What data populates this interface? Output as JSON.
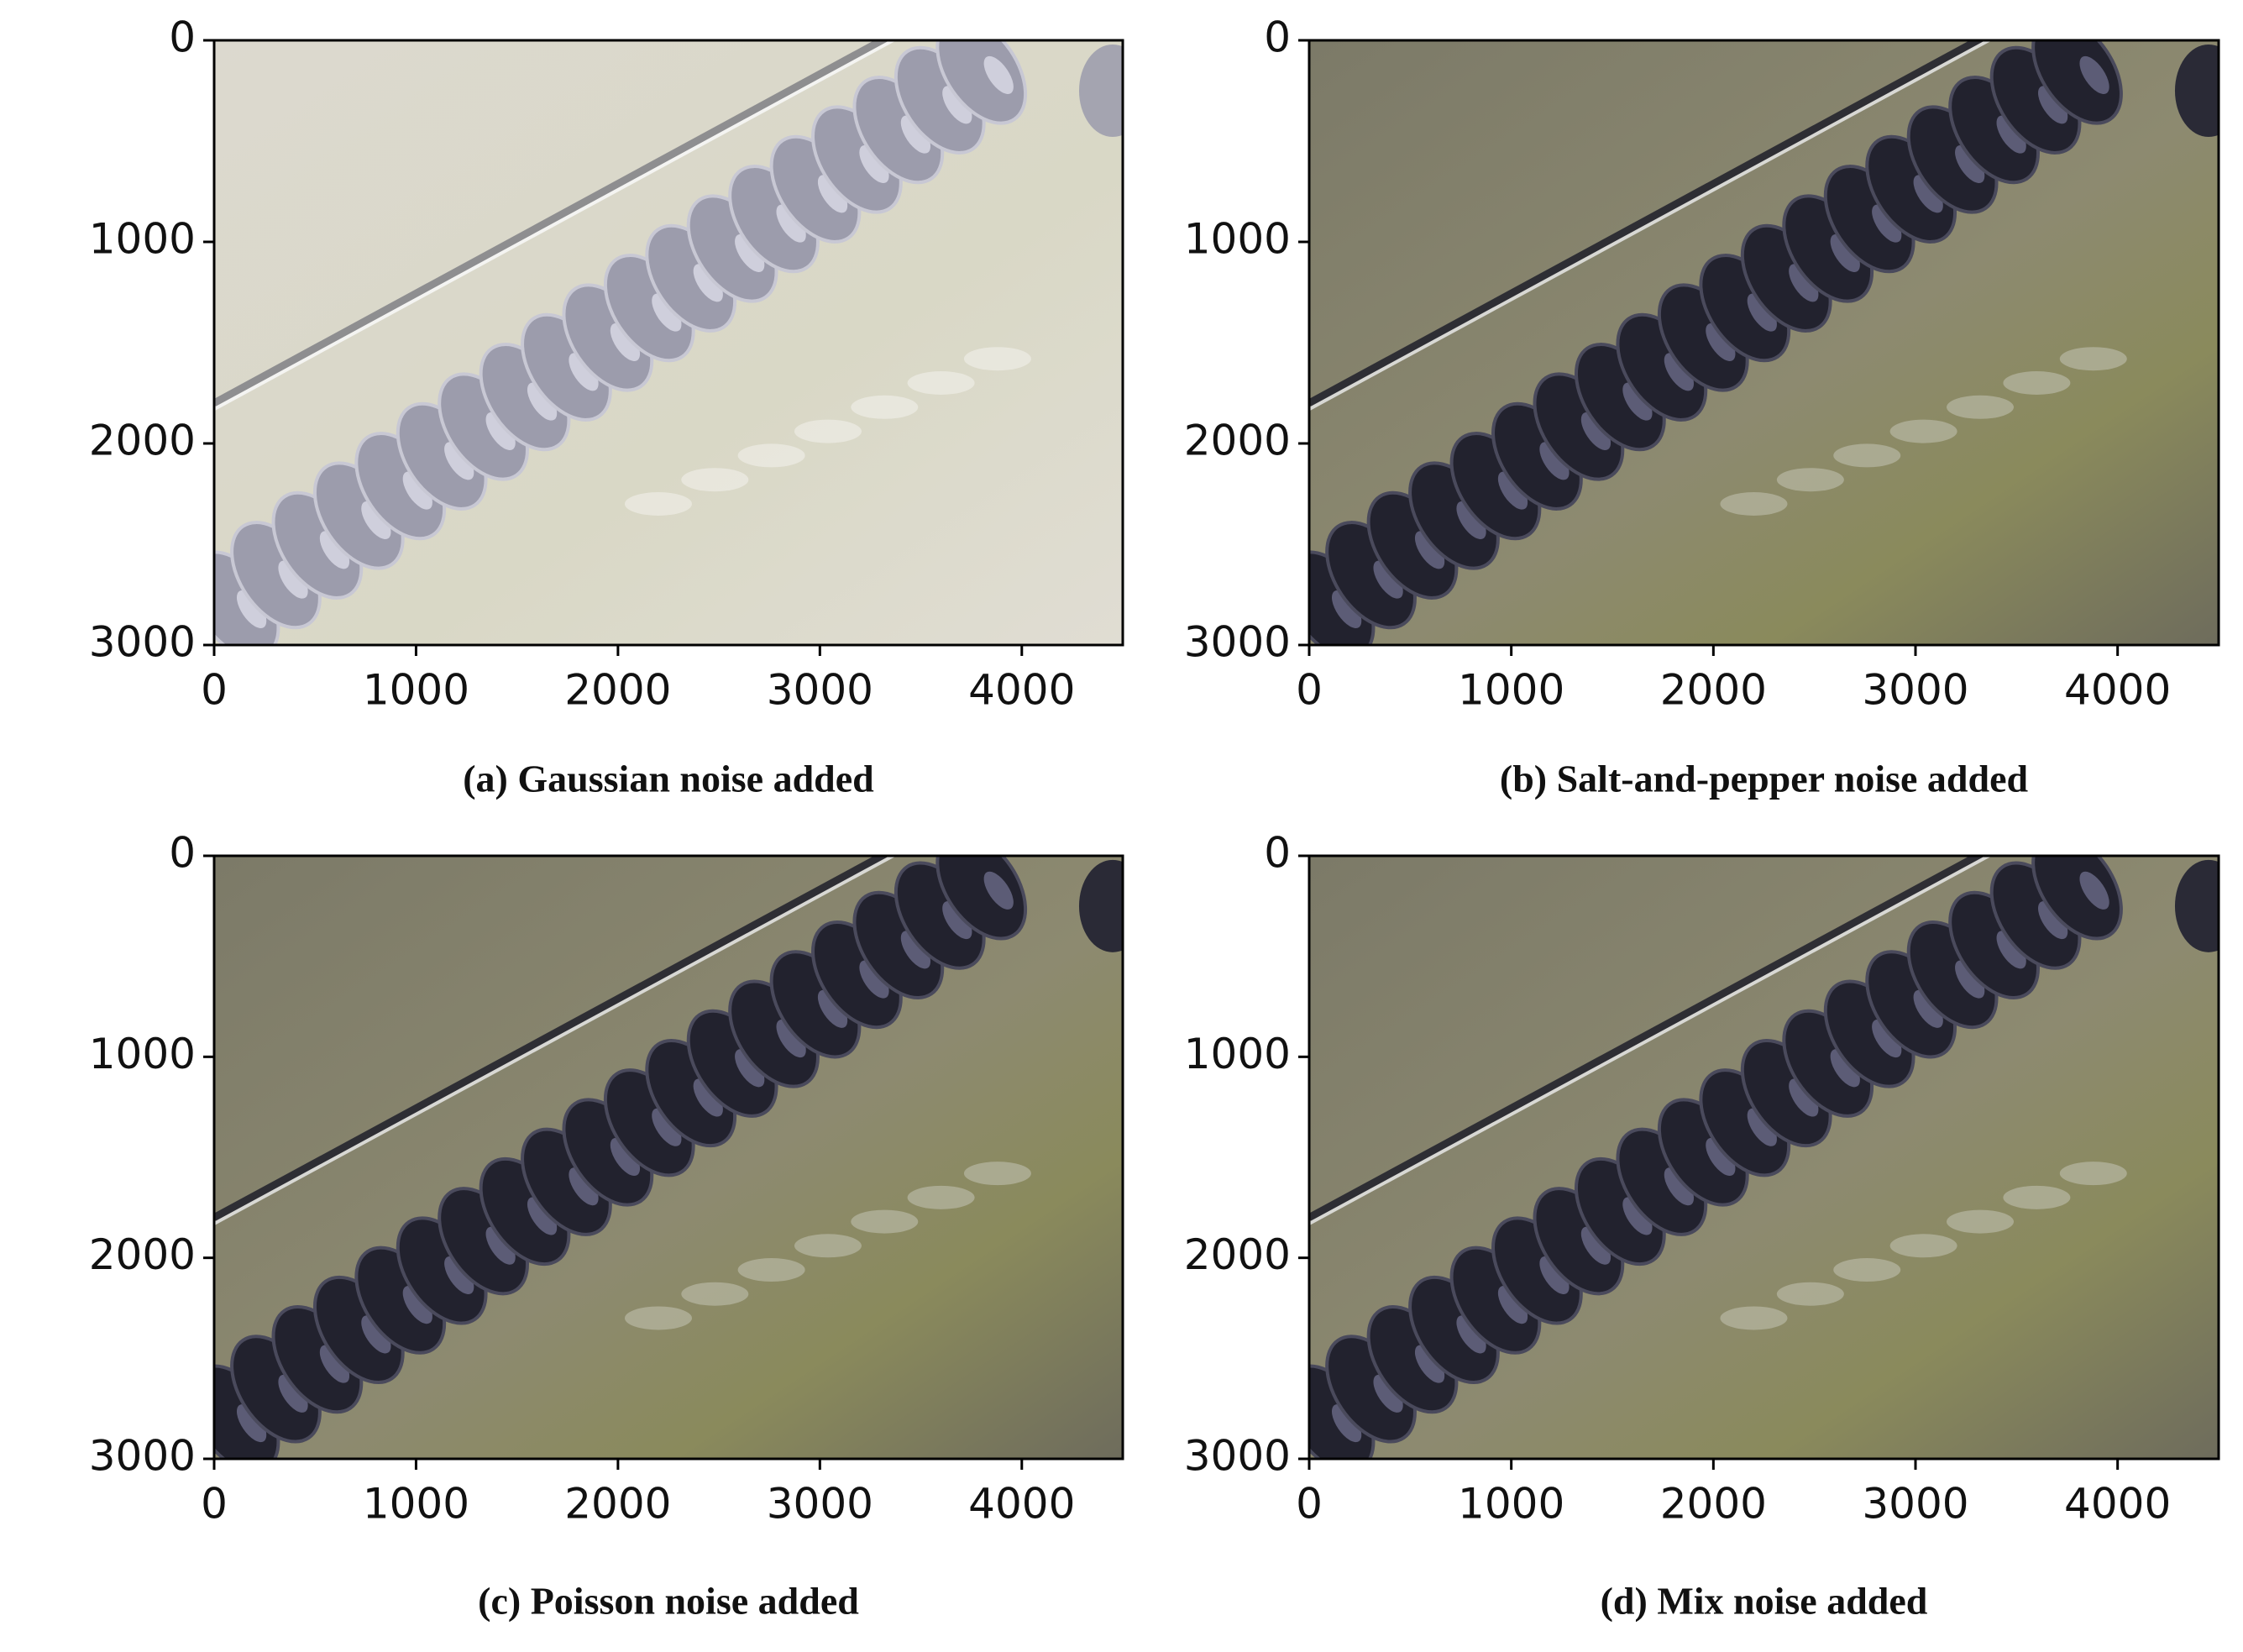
{
  "chart_data": [
    {
      "type": "image",
      "title": "(a) Gaussian noise added",
      "xlim": [
        0,
        4500
      ],
      "ylim": [
        3000,
        0
      ],
      "xticks": [
        0,
        1000,
        2000,
        3000,
        4000
      ],
      "yticks": [
        0,
        1000,
        2000,
        3000
      ]
    },
    {
      "type": "image",
      "title": "(b) Salt-and-pepper noise added",
      "xlim": [
        0,
        4500
      ],
      "ylim": [
        3000,
        0
      ],
      "xticks": [
        0,
        1000,
        2000,
        3000,
        4000
      ],
      "yticks": [
        0,
        1000,
        2000,
        3000
      ]
    },
    {
      "type": "image",
      "title": "(c) Poisson noise added",
      "xlim": [
        0,
        4500
      ],
      "ylim": [
        3000,
        0
      ],
      "xticks": [
        0,
        1000,
        2000,
        3000,
        4000
      ],
      "yticks": [
        0,
        1000,
        2000,
        3000
      ]
    },
    {
      "type": "image",
      "title": "(d) Mix noise added",
      "xlim": [
        0,
        4500
      ],
      "ylim": [
        3000,
        0
      ],
      "xticks": [
        0,
        1000,
        2000,
        3000,
        4000
      ],
      "yticks": [
        0,
        1000,
        2000,
        3000
      ]
    }
  ]
}
